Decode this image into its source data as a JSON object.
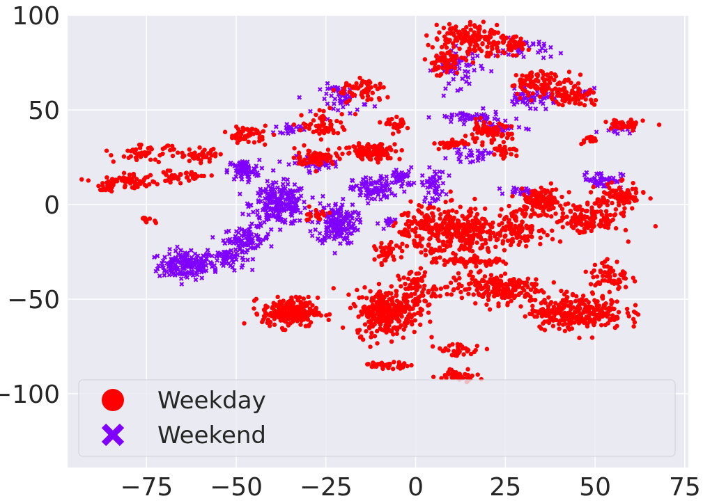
{
  "chart_data": {
    "type": "scatter",
    "title": "",
    "xlabel": "",
    "ylabel": "",
    "xlim": [
      -97,
      76
    ],
    "ylim": [
      -139,
      100
    ],
    "xticks": [
      -75,
      -50,
      -25,
      0,
      25,
      50,
      75
    ],
    "yticks": [
      -100,
      -50,
      0,
      50,
      100
    ],
    "xtick_labels": [
      "−75",
      "−50",
      "−25",
      "0",
      "25",
      "50",
      "75"
    ],
    "ytick_labels": [
      "−100",
      "−50",
      "0",
      "50",
      "100"
    ],
    "grid": true,
    "background": "#eaeaf2",
    "legend": {
      "placement": "lower-center",
      "entries": [
        {
          "label": "Weekday",
          "marker": "circle",
          "color": "#ff0000"
        },
        {
          "label": "Weekend",
          "marker": "x",
          "color": "#8000ff"
        }
      ]
    },
    "series": [
      {
        "name": "Weekday",
        "color": "#ff0000",
        "marker": "circle",
        "clusters": [
          {
            "cx": -35,
            "cy": -57,
            "rx": 7,
            "ry": 7,
            "n": 240
          },
          {
            "cx": -8,
            "cy": -57,
            "rx": 8,
            "ry": 11,
            "n": 280
          },
          {
            "cx": 0,
            "cy": -45,
            "rx": 5,
            "ry": 10,
            "n": 80
          },
          {
            "cx": 22,
            "cy": -44,
            "rx": 12,
            "ry": 7,
            "n": 200
          },
          {
            "cx": 45,
            "cy": -57,
            "rx": 12,
            "ry": 8,
            "n": 300
          },
          {
            "cx": 54,
            "cy": -38,
            "rx": 5,
            "ry": 8,
            "n": 60
          },
          {
            "cx": 12,
            "cy": -15,
            "rx": 10,
            "ry": 12,
            "n": 300
          },
          {
            "cx": 28,
            "cy": -12,
            "rx": 7,
            "ry": 8,
            "n": 120
          },
          {
            "cx": 35,
            "cy": 2,
            "rx": 6,
            "ry": 6,
            "n": 110
          },
          {
            "cx": 48,
            "cy": -8,
            "rx": 8,
            "ry": 7,
            "n": 130
          },
          {
            "cx": 57,
            "cy": 4,
            "rx": 6,
            "ry": 6,
            "n": 100
          },
          {
            "cx": 15,
            "cy": -30,
            "rx": 8,
            "ry": 2,
            "n": 60
          },
          {
            "cx": 0,
            "cy": -12,
            "rx": 5,
            "ry": 10,
            "n": 70
          },
          {
            "cx": -8,
            "cy": -26,
            "rx": 3,
            "ry": 5,
            "n": 40
          },
          {
            "cx": -8,
            "cy": -85,
            "rx": 6,
            "ry": 1.5,
            "n": 40
          },
          {
            "cx": 12,
            "cy": -90,
            "rx": 5,
            "ry": 3,
            "n": 40
          },
          {
            "cx": 12,
            "cy": -77,
            "rx": 6,
            "ry": 3,
            "n": 35
          },
          {
            "cx": 35,
            "cy": 64,
            "rx": 8,
            "ry": 6,
            "n": 100
          },
          {
            "cx": 44,
            "cy": 58,
            "rx": 5,
            "ry": 6,
            "n": 70
          },
          {
            "cx": 15,
            "cy": 88,
            "rx": 9,
            "ry": 8,
            "n": 140
          },
          {
            "cx": 8,
            "cy": 75,
            "rx": 5,
            "ry": 6,
            "n": 60
          },
          {
            "cx": 26,
            "cy": 84,
            "rx": 5,
            "ry": 4,
            "n": 50
          },
          {
            "cx": 20,
            "cy": 38,
            "rx": 6,
            "ry": 5,
            "n": 70
          },
          {
            "cx": 10,
            "cy": 32,
            "rx": 4,
            "ry": 2,
            "n": 40
          },
          {
            "cx": 25,
            "cy": 28,
            "rx": 3,
            "ry": 2,
            "n": 25
          },
          {
            "cx": -12,
            "cy": 28,
            "rx": 7,
            "ry": 4,
            "n": 120
          },
          {
            "cx": -28,
            "cy": 25,
            "rx": 5,
            "ry": 4,
            "n": 70
          },
          {
            "cx": -25,
            "cy": 42,
            "rx": 6,
            "ry": 6,
            "n": 60
          },
          {
            "cx": -15,
            "cy": 60,
            "rx": 6,
            "ry": 6,
            "n": 60
          },
          {
            "cx": -5,
            "cy": 42,
            "rx": 3,
            "ry": 3,
            "n": 30
          },
          {
            "cx": -47,
            "cy": 37,
            "rx": 5,
            "ry": 4,
            "n": 55
          },
          {
            "cx": -60,
            "cy": 26,
            "rx": 5,
            "ry": 3,
            "n": 40
          },
          {
            "cx": -75,
            "cy": 27,
            "rx": 8,
            "ry": 4,
            "n": 50
          },
          {
            "cx": -80,
            "cy": 12,
            "rx": 8,
            "ry": 3,
            "n": 60
          },
          {
            "cx": -86,
            "cy": 8,
            "rx": 2,
            "ry": 2,
            "n": 25
          },
          {
            "cx": -65,
            "cy": 15,
            "rx": 7,
            "ry": 3,
            "n": 40
          },
          {
            "cx": 58,
            "cy": 42,
            "rx": 5,
            "ry": 3,
            "n": 40
          },
          {
            "cx": 48,
            "cy": 34,
            "rx": 2,
            "ry": 2,
            "n": 15
          },
          {
            "cx": -28,
            "cy": -5,
            "rx": 4,
            "ry": 3,
            "n": 20
          },
          {
            "cx": -75,
            "cy": -8,
            "rx": 2,
            "ry": 1.5,
            "n": 12
          }
        ]
      },
      {
        "name": "Weekend",
        "color": "#8000ff",
        "marker": "x",
        "clusters": [
          {
            "cx": -64,
            "cy": -32,
            "rx": 7,
            "ry": 7,
            "n": 160
          },
          {
            "cx": -53,
            "cy": -28,
            "rx": 5,
            "ry": 6,
            "n": 70
          },
          {
            "cx": -47,
            "cy": -18,
            "rx": 6,
            "ry": 5,
            "n": 80
          },
          {
            "cx": -38,
            "cy": 0,
            "rx": 7,
            "ry": 10,
            "n": 240
          },
          {
            "cx": -48,
            "cy": 18,
            "rx": 4,
            "ry": 5,
            "n": 70
          },
          {
            "cx": -22,
            "cy": -10,
            "rx": 5,
            "ry": 10,
            "n": 180
          },
          {
            "cx": -12,
            "cy": 8,
            "rx": 5,
            "ry": 6,
            "n": 90
          },
          {
            "cx": -4,
            "cy": 14,
            "rx": 3,
            "ry": 5,
            "n": 40
          },
          {
            "cx": 5,
            "cy": 10,
            "rx": 3,
            "ry": 8,
            "n": 50
          },
          {
            "cx": -28,
            "cy": 22,
            "rx": 6,
            "ry": 3,
            "n": 60
          },
          {
            "cx": -20,
            "cy": 56,
            "rx": 6,
            "ry": 7,
            "n": 50
          },
          {
            "cx": -35,
            "cy": 40,
            "rx": 4,
            "ry": 2,
            "n": 20
          },
          {
            "cx": 12,
            "cy": 72,
            "rx": 6,
            "ry": 9,
            "n": 60
          },
          {
            "cx": 30,
            "cy": 82,
            "rx": 7,
            "ry": 5,
            "n": 40
          },
          {
            "cx": 32,
            "cy": 56,
            "rx": 7,
            "ry": 4,
            "n": 60
          },
          {
            "cx": 48,
            "cy": 59,
            "rx": 2,
            "ry": 2,
            "n": 12
          },
          {
            "cx": 15,
            "cy": 46,
            "rx": 8,
            "ry": 3,
            "n": 50
          },
          {
            "cx": 24,
            "cy": 40,
            "rx": 6,
            "ry": 3,
            "n": 35
          },
          {
            "cx": 15,
            "cy": 26,
            "rx": 5,
            "ry": 3,
            "n": 30
          },
          {
            "cx": 30,
            "cy": 7,
            "rx": 4,
            "ry": 2,
            "n": 25
          },
          {
            "cx": 52,
            "cy": 13,
            "rx": 5,
            "ry": 4,
            "n": 50
          },
          {
            "cx": 56,
            "cy": 40,
            "rx": 4,
            "ry": 2,
            "n": 15
          },
          {
            "cx": -8,
            "cy": -10,
            "rx": 2,
            "ry": 3,
            "n": 15
          }
        ]
      }
    ]
  }
}
